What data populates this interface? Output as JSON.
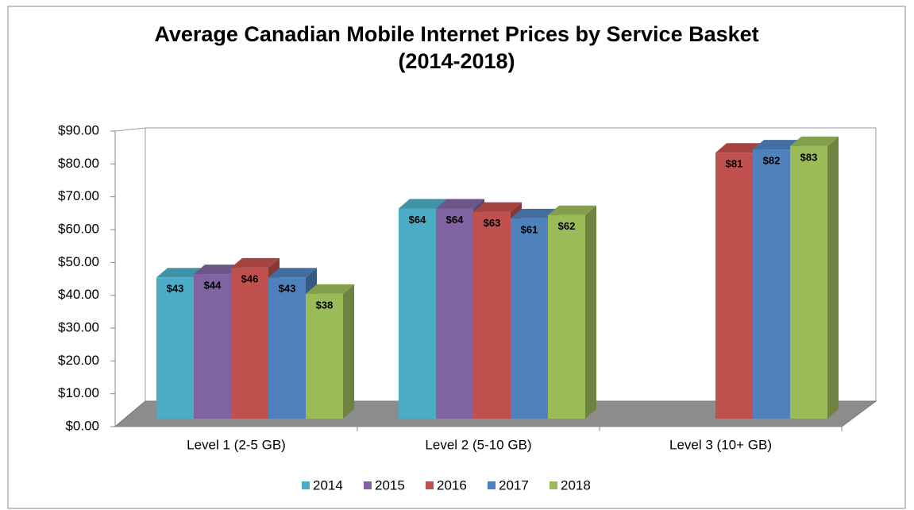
{
  "chart_data": {
    "type": "bar3d",
    "title": "Average Canadian Mobile Internet Prices by Service Basket (2014-2018)",
    "categories": [
      "Level 1 (2-5 GB)",
      "Level 2 (5-10 GB)",
      "Level 3 (10+ GB)"
    ],
    "series": [
      {
        "name": "2014",
        "color": "#4bacc6",
        "values": [
          43,
          64,
          null
        ],
        "value_labels": [
          "$43",
          "$64",
          null
        ]
      },
      {
        "name": "2015",
        "color": "#8064a2",
        "values": [
          44,
          64,
          null
        ],
        "value_labels": [
          "$44",
          "$64",
          null
        ]
      },
      {
        "name": "2016",
        "color": "#c0504d",
        "values": [
          46,
          63,
          81
        ],
        "value_labels": [
          "$46",
          "$63",
          "$81"
        ]
      },
      {
        "name": "2017",
        "color": "#4f81bd",
        "values": [
          43,
          61,
          82
        ],
        "value_labels": [
          "$43",
          "$61",
          "$82"
        ]
      },
      {
        "name": "2018",
        "color": "#9bbb59",
        "values": [
          38,
          62,
          83
        ],
        "value_labels": [
          "$38",
          "$62",
          "$83"
        ]
      }
    ],
    "ylim": [
      0,
      90
    ],
    "yticks": [
      {
        "value": 0,
        "label": "$0.00"
      },
      {
        "value": 10,
        "label": "$10.00"
      },
      {
        "value": 20,
        "label": "$20.00"
      },
      {
        "value": 30,
        "label": "$30.00"
      },
      {
        "value": 40,
        "label": "$40.00"
      },
      {
        "value": 50,
        "label": "$50.00"
      },
      {
        "value": 60,
        "label": "$60.00"
      },
      {
        "value": 70,
        "label": "$70.00"
      },
      {
        "value": 80,
        "label": "$80.00"
      },
      {
        "value": 90,
        "label": "$90.00"
      }
    ],
    "legend": "bottom"
  }
}
